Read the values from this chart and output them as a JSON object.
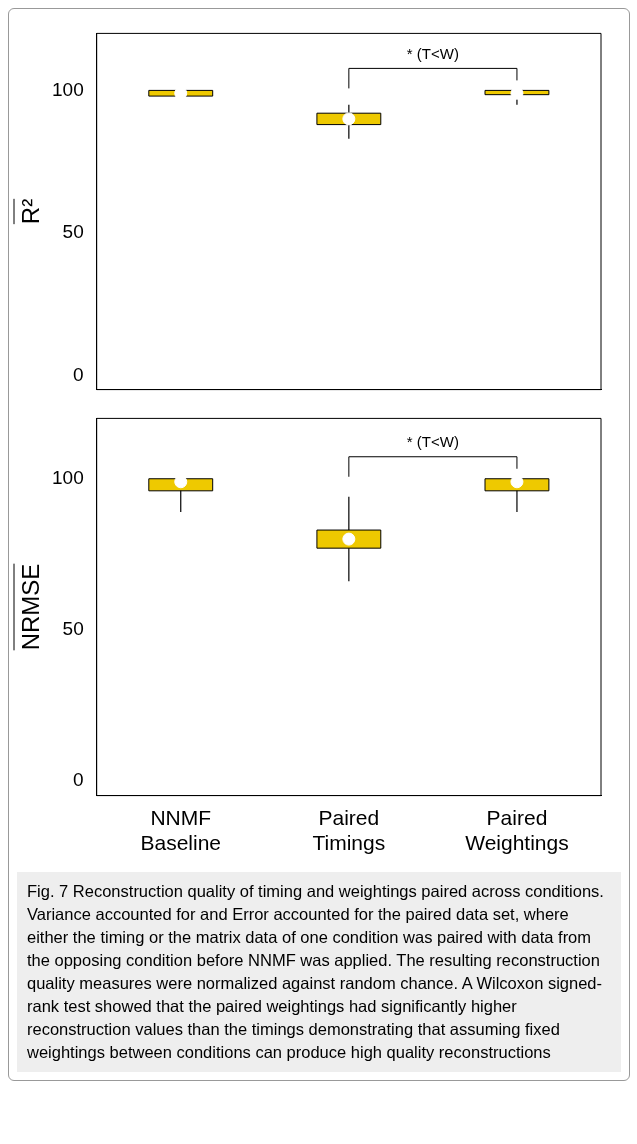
{
  "chart_data": [
    {
      "type": "box",
      "ylabel": "R²",
      "categories": [
        null,
        null,
        null
      ],
      "color": "#eec900",
      "ylim": [
        -5,
        120
      ],
      "yticks": [
        0,
        50,
        100
      ],
      "tick_labels": "y",
      "grid": false,
      "legend": false,
      "annotations": [
        "* (T<W)"
      ],
      "boxes": [
        {
          "low": 97,
          "q1": 98,
          "median": 99,
          "q3": 100,
          "high": 100
        },
        {
          "low": 83,
          "q1": 88,
          "median": 90,
          "q3": 92,
          "high": 95
        },
        {
          "low": 95,
          "q1": 98.5,
          "median": 99,
          "q3": 100,
          "high": 100
        }
      ]
    },
    {
      "type": "box",
      "ylabel": "NRMSE",
      "categories": [
        "NNMF Baseline",
        "Paired Timings",
        "Paired Weightings"
      ],
      "color": "#eec900",
      "ylim": [
        -5,
        120
      ],
      "yticks": [
        0,
        50,
        100
      ],
      "grid": false,
      "legend": false,
      "annotations": [
        "* (T<W)",
        "Fig. 7 Reconstruction quality of timing and weightings paired across conditions. Variance accounted for and Error accounted for the paired data set, where either the timing or the matrix data of one condition was paired with data from the opposing condition before NNMF was applied. The resulting reconstruction quality measures were normalized against random chance. A Wilcoxon signed-rank test showed that the paired weightings had significantly higher reconstruction values than the timings demonstrating that assuming fixed weightings between conditions can produce high quality reconstructions"
      ],
      "boxes": [
        {
          "low": 89,
          "q1": 96,
          "median": 99,
          "q3": 100,
          "high": 100
        },
        {
          "low": 66,
          "q1": 77,
          "median": 80,
          "q3": 83,
          "high": 94
        },
        {
          "low": 89,
          "q1": 96,
          "median": 99,
          "q3": 100,
          "high": 100
        }
      ]
    }
  ]
}
